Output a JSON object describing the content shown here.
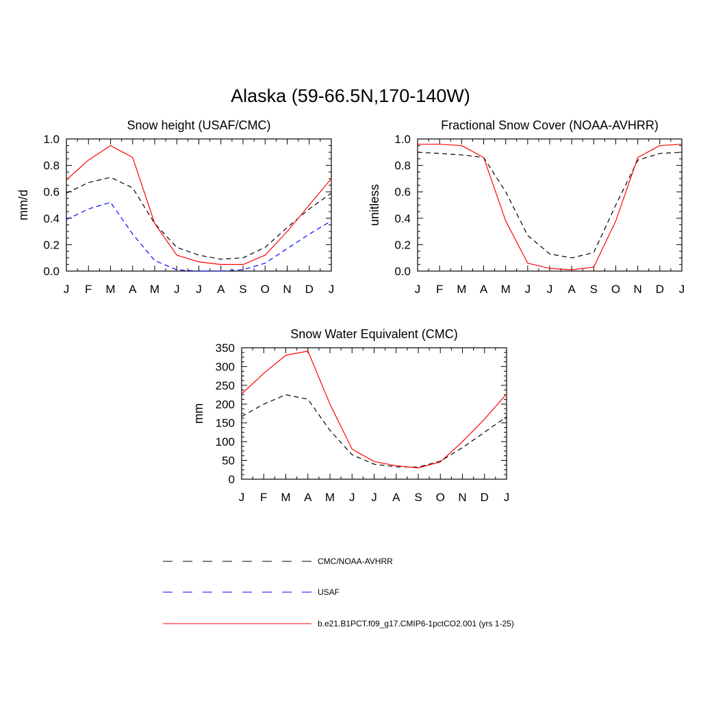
{
  "figure": {
    "title": "Alaska (59-66.5N,170-140W)"
  },
  "legend": {
    "entries": [
      {
        "label": "CMC/NOAA-AVHRR",
        "color": "#000000",
        "style": "dashed"
      },
      {
        "label": "USAF",
        "color": "#0000ff",
        "style": "dashed"
      },
      {
        "label": "b.e21.B1PCT.f09_g17.CMIP6-1pctCO2.001 (yrs 1-25)",
        "color": "#ff0000",
        "style": "solid"
      }
    ]
  },
  "chart_data": [
    {
      "type": "line",
      "title": "Snow height (USAF/CMC)",
      "xlabel": "",
      "ylabel": "mm/d",
      "ylim": [
        0,
        1.0
      ],
      "yticks": [
        0.0,
        0.2,
        0.4,
        0.6,
        0.8,
        1.0
      ],
      "ytick_labels": [
        "0.0",
        "0.2",
        "0.4",
        "0.6",
        "0.8",
        "1.0"
      ],
      "categories": [
        "J",
        "F",
        "M",
        "A",
        "M",
        "J",
        "J",
        "A",
        "S",
        "O",
        "N",
        "D",
        "J"
      ],
      "grid": false,
      "series": [
        {
          "name": "CMC/NOAA-AVHRR",
          "color": "#000000",
          "style": "dashed",
          "values": [
            0.59,
            0.67,
            0.71,
            0.63,
            0.36,
            0.18,
            0.12,
            0.09,
            0.1,
            0.18,
            0.33,
            0.47,
            0.59
          ]
        },
        {
          "name": "USAF",
          "color": "#0000ff",
          "style": "dashed",
          "values": [
            0.39,
            0.47,
            0.52,
            0.28,
            0.08,
            0.01,
            0.0,
            0.0,
            0.01,
            0.06,
            0.17,
            0.28,
            0.38
          ]
        },
        {
          "name": "b.e21.B1PCT.f09_g17.CMIP6-1pctCO2.001 (yrs 1-25)",
          "color": "#ff0000",
          "style": "solid",
          "values": [
            0.69,
            0.84,
            0.95,
            0.86,
            0.36,
            0.12,
            0.07,
            0.05,
            0.05,
            0.12,
            0.3,
            0.5,
            0.7
          ]
        }
      ]
    },
    {
      "type": "line",
      "title": "Fractional Snow Cover (NOAA-AVHRR)",
      "xlabel": "",
      "ylabel": "unitless",
      "ylim": [
        0,
        1.0
      ],
      "yticks": [
        0.0,
        0.2,
        0.4,
        0.6,
        0.8,
        1.0
      ],
      "ytick_labels": [
        "0.0",
        "0.2",
        "0.4",
        "0.6",
        "0.8",
        "1.0"
      ],
      "categories": [
        "J",
        "F",
        "M",
        "A",
        "M",
        "J",
        "J",
        "A",
        "S",
        "O",
        "N",
        "D",
        "J"
      ],
      "grid": false,
      "series": [
        {
          "name": "CMC/NOAA-AVHRR",
          "color": "#000000",
          "style": "dashed",
          "values": [
            0.9,
            0.89,
            0.88,
            0.86,
            0.6,
            0.27,
            0.13,
            0.1,
            0.14,
            0.5,
            0.84,
            0.89,
            0.9
          ]
        },
        {
          "name": "b.e21.B1PCT.f09_g17.CMIP6-1pctCO2.001 (yrs 1-25)",
          "color": "#ff0000",
          "style": "solid",
          "values": [
            0.96,
            0.96,
            0.95,
            0.86,
            0.38,
            0.06,
            0.02,
            0.01,
            0.03,
            0.38,
            0.86,
            0.95,
            0.96
          ]
        }
      ]
    },
    {
      "type": "line",
      "title": "Snow Water Equivalent (CMC)",
      "xlabel": "",
      "ylabel": "mm",
      "ylim": [
        0,
        350
      ],
      "yticks": [
        0,
        50,
        100,
        150,
        200,
        250,
        300,
        350
      ],
      "ytick_labels": [
        "0",
        "50",
        "100",
        "150",
        "200",
        "250",
        "300",
        "350"
      ],
      "categories": [
        "J",
        "F",
        "M",
        "A",
        "M",
        "J",
        "J",
        "A",
        "S",
        "O",
        "N",
        "D",
        "J"
      ],
      "grid": false,
      "series": [
        {
          "name": "CMC/NOAA-AVHRR",
          "color": "#000000",
          "style": "dashed",
          "values": [
            167,
            200,
            225,
            213,
            130,
            65,
            40,
            33,
            32,
            48,
            84,
            125,
            166
          ]
        },
        {
          "name": "b.e21.B1PCT.f09_g17.CMIP6-1pctCO2.001 (yrs 1-25)",
          "color": "#ff0000",
          "style": "solid",
          "values": [
            227,
            282,
            330,
            341,
            200,
            80,
            47,
            36,
            30,
            46,
            100,
            160,
            227
          ]
        }
      ]
    }
  ]
}
